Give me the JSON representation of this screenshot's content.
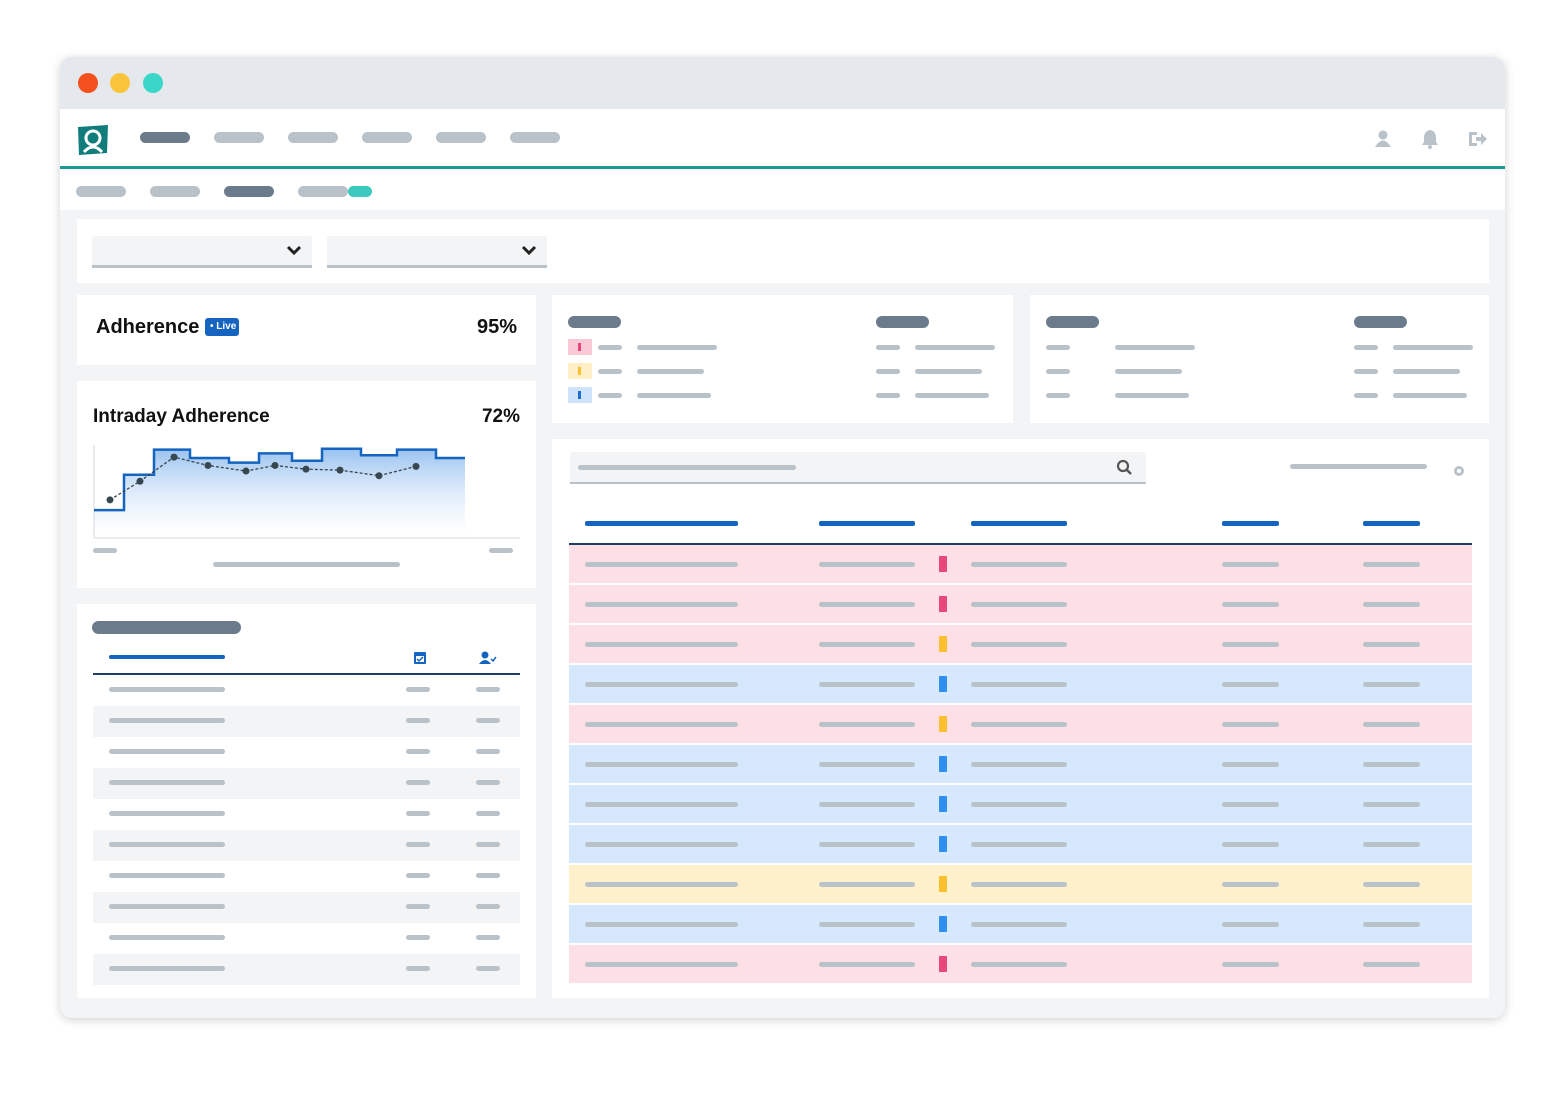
{
  "adherence": {
    "title": "Adherence",
    "badge": "Live",
    "value": "95%"
  },
  "intraday": {
    "title": "Intraday Adherence",
    "value": "72%",
    "chart": {
      "type": "line",
      "ylim": [
        0,
        100
      ],
      "step_values": [
        30,
        68,
        95,
        86,
        81,
        91,
        83,
        96,
        89,
        95,
        86
      ],
      "point_values": [
        41,
        61,
        87,
        78,
        72,
        78,
        74,
        73,
        67,
        77
      ]
    }
  }
}
